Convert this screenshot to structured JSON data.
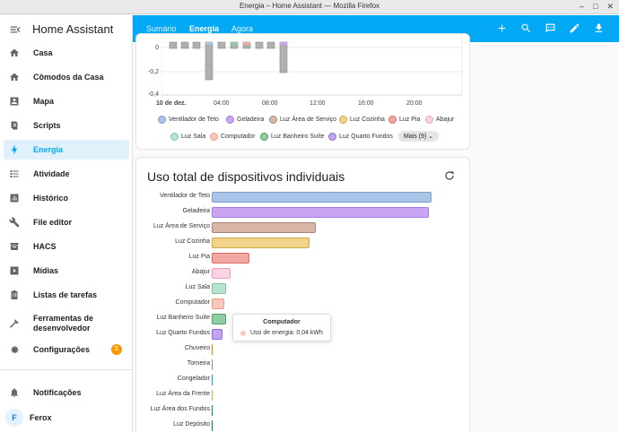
{
  "window": {
    "title": "Energia – Home Assistant — Mozilla Firefox"
  },
  "sidebar": {
    "brand": "Home Assistant",
    "items": [
      {
        "label": "Casa",
        "icon": "home-icon"
      },
      {
        "label": "Cômodos da Casa",
        "icon": "home-icon"
      },
      {
        "label": "Mapa",
        "icon": "account-box-icon"
      },
      {
        "label": "Scripts",
        "icon": "script-icon"
      },
      {
        "label": "Energia",
        "icon": "lightning-bolt-icon",
        "active": true
      },
      {
        "label": "Atividade",
        "icon": "list-icon"
      },
      {
        "label": "Histórico",
        "icon": "chart-box-icon"
      },
      {
        "label": "File editor",
        "icon": "wrench-icon"
      },
      {
        "label": "HACS",
        "icon": "hacs-icon"
      },
      {
        "label": "Mídias",
        "icon": "play-box-icon"
      },
      {
        "label": "Listas de tarefas",
        "icon": "clipboard-list-icon"
      },
      {
        "label": "Ferramentas de desenvolvedor",
        "icon": "hammer-icon"
      },
      {
        "label": "Configurações",
        "icon": "cog-icon",
        "badge": "1"
      }
    ],
    "notifications": "Notificações",
    "user": {
      "name": "Ferox",
      "initial": "F"
    }
  },
  "appbar": {
    "tabs": [
      "Sumário",
      "Energia",
      "Agora"
    ],
    "active_tab": "Energia",
    "icons": [
      "plus-icon",
      "search-icon",
      "message-icon",
      "pencil-icon",
      "download-icon"
    ]
  },
  "top_chart": {
    "y_ticks": [
      "0",
      "-0,2",
      "-0,4"
    ],
    "x_ticks": [
      "10 de dez.",
      "04:00",
      "08:00",
      "12:00",
      "16:00",
      "20:00"
    ],
    "legend": [
      {
        "name": "Ventilador de Teto",
        "color": "#aac4e8",
        "border": "#7c9dd0"
      },
      {
        "name": "Geladeira",
        "color": "#caa6f2",
        "border": "#a37ae0"
      },
      {
        "name": "Luz Área de Serviço",
        "color": "#d9b7a7",
        "border": "#a88676"
      },
      {
        "name": "Luz Cozinha",
        "color": "#f2d38a",
        "border": "#d2a847"
      },
      {
        "name": "Luz Pia",
        "color": "#f2a8a2",
        "border": "#d96d65"
      },
      {
        "name": "Abajur",
        "color": "#fcd3e4",
        "border": "#f09cbf"
      },
      {
        "name": "Luz Sala",
        "color": "#b8e3cf",
        "border": "#7ec2a2"
      },
      {
        "name": "Computador",
        "color": "#f8c8bc",
        "border": "#ef9b87"
      },
      {
        "name": "Luz Banheiro Suíte",
        "color": "#8ed0a3",
        "border": "#4d9f66"
      },
      {
        "name": "Luz Quarto Fundos",
        "color": "#c3a6ef",
        "border": "#8b6fd6"
      }
    ],
    "more_label": "Mais (9)"
  },
  "bottom_card": {
    "title": "Uso total de dispositivos individuais",
    "tooltip": {
      "title": "Computador",
      "text": "Uso de energia: 0,04 kWh",
      "color": "#f8c8bc"
    }
  },
  "chart_data": {
    "type": "bar",
    "orientation": "horizontal",
    "title": "Uso total de dispositivos individuais",
    "categories": [
      "Ventilador de Teto",
      "Geladeira",
      "Luz Área de Serviço",
      "Luz Cozinha",
      "Luz Pia",
      "Abajur",
      "Luz Sala",
      "Computador",
      "Luz Banheiro Suíte",
      "Luz Quarto Fundos",
      "Chuveiro",
      "Torneira",
      "Congelador",
      "Luz Área da Frente",
      "Luz Área dos Fundos",
      "Luz Depósito"
    ],
    "values": [
      0.7,
      0.69,
      0.33,
      0.31,
      0.12,
      0.06,
      0.045,
      0.04,
      0.045,
      0.035,
      0.002,
      0.002,
      0.002,
      0.002,
      0.002,
      0.002
    ],
    "unit": "kWh",
    "colors": [
      "#aac4e8",
      "#caa6f2",
      "#d9b7a7",
      "#f2d38a",
      "#f2a8a2",
      "#fcd3e4",
      "#b8e3cf",
      "#f8c8bc",
      "#8ed0a3",
      "#c3a6ef",
      "#ffa726",
      "#d9b7a7",
      "#4dd0e1",
      "#dce775",
      "#4db6ac",
      "#26a69a"
    ],
    "borders": [
      "#7c9dd0",
      "#a37ae0",
      "#a88676",
      "#d2a847",
      "#d96d65",
      "#f09cbf",
      "#7ec2a2",
      "#ef9b87",
      "#4d9f66",
      "#8b6fd6",
      "#e08a00",
      "#a88676",
      "#00acc1",
      "#b5c23d",
      "#00897b",
      "#00796b"
    ],
    "xlim": [
      0,
      0.72
    ]
  }
}
